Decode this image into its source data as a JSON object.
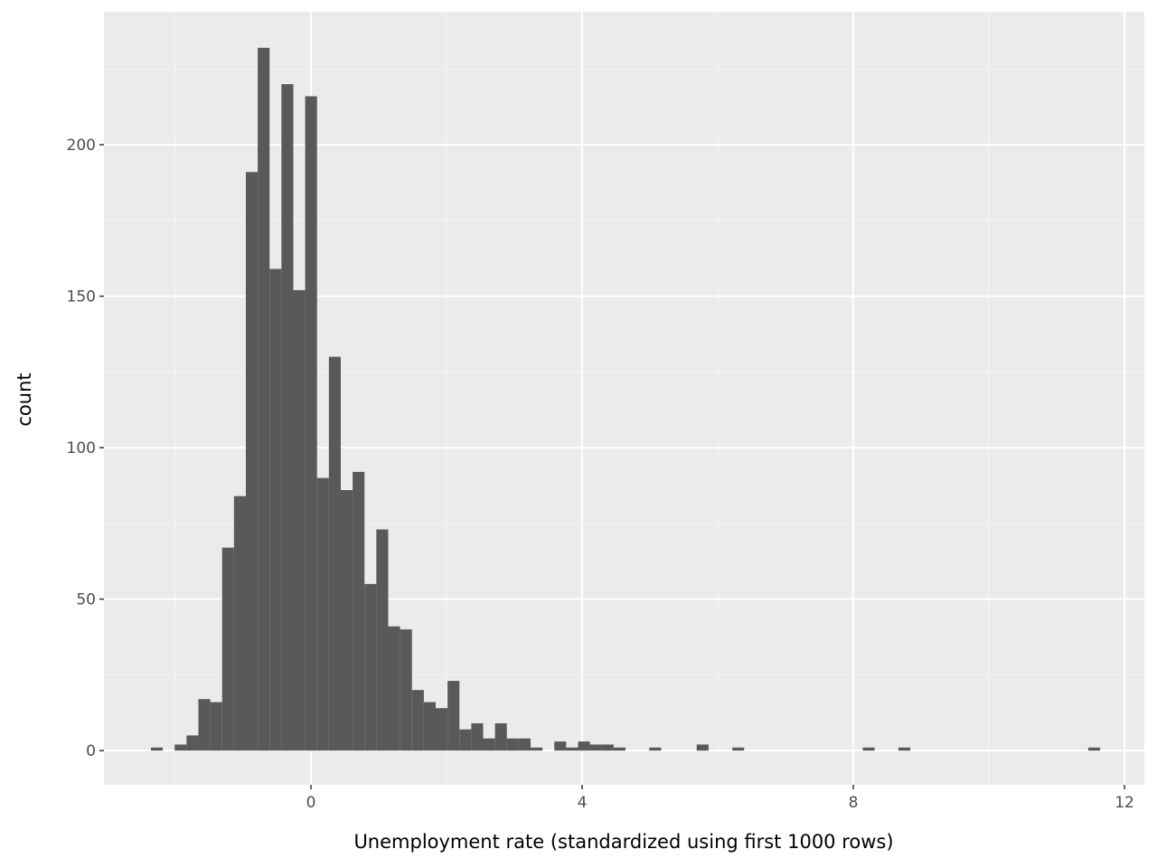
{
  "chart_data": {
    "type": "histogram",
    "x_label": "Unemployment rate (standardized using first 1000 rows)",
    "y_label": "count",
    "bins": [
      -2.36,
      -2.185,
      -2.01,
      -1.835,
      -1.66,
      -1.485,
      -1.31,
      -1.135,
      -0.96,
      -0.785,
      -0.61,
      -0.435,
      -0.26,
      -0.085,
      0.09,
      0.265,
      0.44,
      0.615,
      0.79,
      0.965,
      1.14,
      1.315,
      1.49,
      1.665,
      1.84,
      2.015,
      2.19,
      2.365,
      2.54,
      2.715,
      2.89,
      3.065,
      3.24,
      3.415,
      3.59,
      3.765,
      3.94,
      4.115,
      4.29,
      4.465,
      4.64,
      4.815,
      4.99,
      5.165,
      5.34,
      5.515,
      5.69,
      5.865,
      6.04,
      6.215,
      6.39,
      6.565,
      6.74,
      6.915,
      7.09,
      7.265,
      7.44,
      7.615,
      7.79,
      7.965,
      8.14,
      8.315,
      8.49,
      8.665,
      8.84,
      9.015,
      9.19,
      9.365,
      9.54,
      9.715,
      9.89,
      10.065,
      10.24,
      10.415,
      10.59,
      10.765,
      10.94,
      11.115,
      11.29,
      11.465,
      11.64
    ],
    "values": [
      1,
      0,
      2,
      5,
      17,
      16,
      67,
      84,
      191,
      232,
      159,
      220,
      152,
      216,
      90,
      130,
      86,
      92,
      55,
      73,
      41,
      40,
      20,
      16,
      14,
      23,
      7,
      9,
      4,
      9,
      4,
      4,
      1,
      0,
      3,
      1,
      3,
      2,
      2,
      1,
      0,
      0,
      1,
      0,
      0,
      0,
      2,
      0,
      0,
      1,
      0,
      0,
      0,
      0,
      0,
      0,
      0,
      0,
      0,
      0,
      1,
      0,
      0,
      1,
      0,
      0,
      0,
      0,
      0,
      0,
      0,
      0,
      0,
      0,
      0,
      0,
      0,
      0,
      0,
      1
    ],
    "color": "#595959",
    "xlim": [
      -3.053,
      12.293
    ],
    "xticks": [
      0,
      4,
      8,
      12
    ],
    "ylim": [
      -11.3,
      243.9
    ],
    "yticks": [
      0,
      50,
      100,
      150,
      200
    ],
    "grid": true,
    "minor_grid": true
  }
}
